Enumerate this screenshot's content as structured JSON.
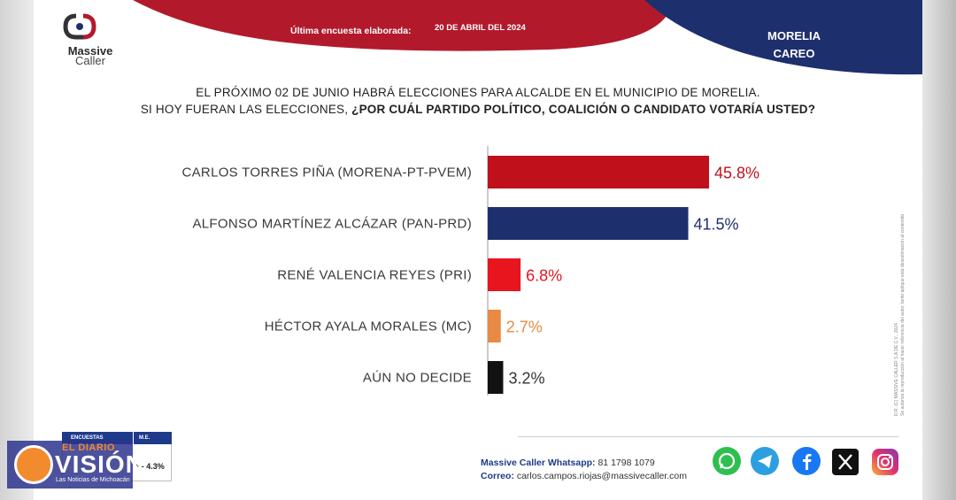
{
  "brand": {
    "name": "Massive",
    "sub": "Caller"
  },
  "banner": {
    "label": "Última encuesta elaborada:",
    "date": "20 DE ABRIL DEL 2024"
  },
  "city": {
    "line1": "MORELIA",
    "line2": "CAREO"
  },
  "question": {
    "line1": "EL PRÓXIMO 02 DE JUNIO HABRÁ ELECCIONES PARA ALCALDE EN EL MUNICIPIO DE MORELIA.",
    "line2_plain": "SI HOY FUERAN LAS ELECCIONES, ",
    "line2_bold": "¿POR CUÁL PARTIDO POLÍTICO, COALICIÓN O CANDIDATO VOTARÍA USTED?"
  },
  "chart_data": {
    "type": "bar",
    "orientation": "horizontal",
    "categories": [
      "CARLOS TORRES PIÑA (MORENA-PT-PVEM)",
      "ALFONSO MARTÍNEZ ALCÁZAR (PAN-PRD)",
      "RENÉ VALENCIA REYES (PRI)",
      "HÉCTOR AYALA MORALES (MC)",
      "AÚN NO DECIDE"
    ],
    "values": [
      45.8,
      41.5,
      6.8,
      2.7,
      3.2
    ],
    "value_labels": [
      "45.8%",
      "41.5%",
      "6.8%",
      "2.7%",
      "3.2%"
    ],
    "colors": [
      "#c0101c",
      "#1e2f6e",
      "#e8141e",
      "#e88a44",
      "#111111"
    ],
    "label_colors": [
      "#c0101c",
      "#1e2f6e",
      "#e8141e",
      "#e88a44",
      "#333333"
    ],
    "xlim": [
      0,
      50
    ],
    "grid": false,
    "legend": "none"
  },
  "side_note": {
    "line1": "D.R. (C) MASSIVE CALLER S.A DE C.V., 2024",
    "line2": "Se autoriza la reproducción al hacer referencia del autor, tanto aplique esta desestimación al contenido"
  },
  "meta": {
    "col1": "ENCUESTAS",
    "col2": "M.E.",
    "value": "+/- 4.3%"
  },
  "contact": {
    "whatsapp_label": "Massive Caller Whatsapp:",
    "whatsapp_value": "81 1798 1079",
    "email_label": "Correo:",
    "email_value": "carlos.campos.riojas@massivecaller.com"
  },
  "social_icons": [
    "whatsapp-icon",
    "telegram-icon",
    "facebook-icon",
    "x-icon",
    "instagram-icon"
  ],
  "watermark": {
    "top": "EL DIARIO",
    "main": "VISIÓN",
    "sub": "Las Noticias de Michoacán"
  }
}
